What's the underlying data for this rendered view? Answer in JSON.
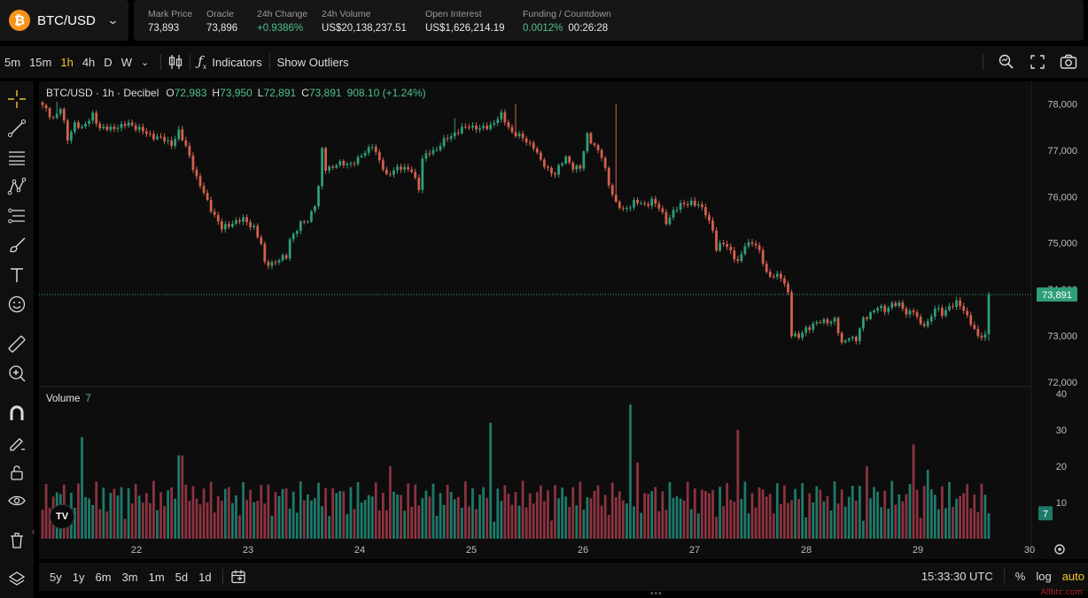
{
  "market": {
    "symbol": "BTC/USD",
    "logo_letter": "₿",
    "stats": [
      {
        "label": "Mark Price",
        "value": "73,893",
        "color": "white"
      },
      {
        "label": "Oracle",
        "value": "73,896",
        "color": "white"
      },
      {
        "label": "24h Change",
        "value": "+0.9386%",
        "color": "green"
      },
      {
        "label": "24h Volume",
        "value": "US$20,138,237.51",
        "color": "white"
      },
      {
        "label": "Open Interest",
        "value": "US$1,626,214.19",
        "color": "white"
      }
    ],
    "funding": {
      "label": "Funding / Countdown",
      "rate": "0.0012%",
      "countdown": "00:26:28"
    }
  },
  "toolbar": {
    "timeframes": [
      "5m",
      "15m",
      "1h",
      "4h",
      "D",
      "W"
    ],
    "active_timeframe": "1h",
    "indicators_label": "Indicators",
    "outliers_label": "Show Outliers"
  },
  "legend": {
    "title": "BTC/USD · 1h · Decibel",
    "open_key": "O",
    "open": "72,983",
    "high_key": "H",
    "high": "73,950",
    "low_key": "L",
    "low": "72,891",
    "close_key": "C",
    "close": "73,891",
    "change": "908.10 (+1.24%)"
  },
  "volume_legend": {
    "label": "Volume",
    "value": "7"
  },
  "tv_logo": "TV",
  "price_axis": {
    "ticks": [
      "78,000",
      "77,000",
      "76,000",
      "75,000",
      "74,000",
      "73,000",
      "72,000"
    ],
    "current_label": "73,891"
  },
  "volume_axis": {
    "ticks": [
      "40",
      "30",
      "20",
      "10"
    ],
    "current_label": "7"
  },
  "time_axis": {
    "ticks": [
      "22",
      "23",
      "24",
      "25",
      "26",
      "27",
      "28",
      "29",
      "30"
    ]
  },
  "range_bar": {
    "ranges": [
      "5y",
      "1y",
      "6m",
      "3m",
      "1m",
      "5d",
      "1d"
    ],
    "clock": "15:33:30 UTC",
    "percent": "%",
    "log": "log",
    "auto": "auto"
  },
  "watermark": "Allbtc.com",
  "colors": {
    "up": "#2f9e7a",
    "down": "#d4614d",
    "vol_up": "#1e7a6a",
    "vol_down": "#8c3340",
    "accent": "#f4c430",
    "price_tag": "#2f9e7a"
  },
  "chart_data": {
    "type": "candlestick",
    "interval": "1h",
    "x_ticks": [
      "22",
      "23",
      "24",
      "25",
      "26",
      "27",
      "28",
      "29",
      "30"
    ],
    "ylim": [
      71900,
      78300
    ],
    "volume_ylim": [
      0,
      40
    ],
    "price_path": [
      [
        0,
        77950
      ],
      [
        3,
        77700
      ],
      [
        5,
        77900
      ],
      [
        7,
        77250
      ],
      [
        9,
        77600
      ],
      [
        11,
        77450
      ],
      [
        14,
        77800
      ],
      [
        16,
        77450
      ],
      [
        19,
        77500
      ],
      [
        22,
        77500
      ],
      [
        24,
        77600
      ],
      [
        28,
        77400
      ],
      [
        33,
        77250
      ],
      [
        36,
        77150
      ],
      [
        38,
        77400
      ],
      [
        41,
        76900
      ],
      [
        43,
        76400
      ],
      [
        46,
        75900
      ],
      [
        48,
        75600
      ],
      [
        50,
        75300
      ],
      [
        53,
        75450
      ],
      [
        56,
        75500
      ],
      [
        59,
        75350
      ],
      [
        61,
        74950
      ],
      [
        62,
        74550
      ],
      [
        65,
        74600
      ],
      [
        68,
        74700
      ],
      [
        69,
        75100
      ],
      [
        72,
        75400
      ],
      [
        74,
        75500
      ],
      [
        76,
        75850
      ],
      [
        77,
        76200
      ],
      [
        78,
        77000
      ],
      [
        79,
        76600
      ],
      [
        82,
        76700
      ],
      [
        85,
        76700
      ],
      [
        88,
        76800
      ],
      [
        90,
        76950
      ],
      [
        92,
        77150
      ],
      [
        94,
        76750
      ],
      [
        96,
        76450
      ],
      [
        98,
        76600
      ],
      [
        100,
        76600
      ],
      [
        103,
        76600
      ],
      [
        105,
        76150
      ],
      [
        106,
        76800
      ],
      [
        108,
        77000
      ],
      [
        110,
        77000
      ],
      [
        113,
        77300
      ],
      [
        116,
        77400
      ],
      [
        119,
        77550
      ],
      [
        122,
        77450
      ],
      [
        125,
        77550
      ],
      [
        128,
        77750
      ],
      [
        131,
        77400
      ],
      [
        134,
        77250
      ],
      [
        137,
        77100
      ],
      [
        139,
        76750
      ],
      [
        141,
        76600
      ],
      [
        143,
        76500
      ],
      [
        146,
        76850
      ],
      [
        148,
        76650
      ],
      [
        150,
        76600
      ],
      [
        152,
        77350
      ],
      [
        154,
        77100
      ],
      [
        156,
        76850
      ],
      [
        158,
        76300
      ],
      [
        160,
        75850
      ],
      [
        162,
        75700
      ],
      [
        165,
        75900
      ],
      [
        168,
        75800
      ],
      [
        170,
        75950
      ],
      [
        172,
        75750
      ],
      [
        174,
        75450
      ],
      [
        176,
        75700
      ],
      [
        178,
        75800
      ],
      [
        181,
        75900
      ],
      [
        183,
        75800
      ],
      [
        185,
        75650
      ],
      [
        187,
        75300
      ],
      [
        188,
        74850
      ],
      [
        190,
        75000
      ],
      [
        192,
        74850
      ],
      [
        194,
        74550
      ],
      [
        196,
        74950
      ],
      [
        198,
        75050
      ],
      [
        200,
        74800
      ],
      [
        202,
        74350
      ],
      [
        204,
        74300
      ],
      [
        206,
        74250
      ],
      [
        208,
        73950
      ],
      [
        209,
        73050
      ],
      [
        211,
        72950
      ],
      [
        213,
        73150
      ],
      [
        215,
        73250
      ],
      [
        218,
        73300
      ],
      [
        221,
        73350
      ],
      [
        223,
        72800
      ],
      [
        225,
        73000
      ],
      [
        227,
        72900
      ],
      [
        229,
        73350
      ],
      [
        231,
        73500
      ],
      [
        233,
        73600
      ],
      [
        235,
        73550
      ],
      [
        237,
        73700
      ],
      [
        239,
        73650
      ],
      [
        241,
        73500
      ],
      [
        243,
        73550
      ],
      [
        245,
        73200
      ],
      [
        247,
        73300
      ],
      [
        249,
        73600
      ],
      [
        251,
        73450
      ],
      [
        253,
        73650
      ],
      [
        255,
        73700
      ],
      [
        257,
        73550
      ],
      [
        259,
        73300
      ],
      [
        261,
        72950
      ],
      [
        263,
        73000
      ],
      [
        264,
        73890
      ]
    ],
    "spikes": {
      "132": 78000,
      "160": 78000,
      "115": 77700,
      "4": 78050
    },
    "volume_spikes": {
      "11": 28,
      "38": 23,
      "39": 23,
      "97": 20,
      "125": 32,
      "164": 37,
      "166": 21,
      "194": 30,
      "230": 20,
      "243": 26,
      "247": 19
    }
  }
}
